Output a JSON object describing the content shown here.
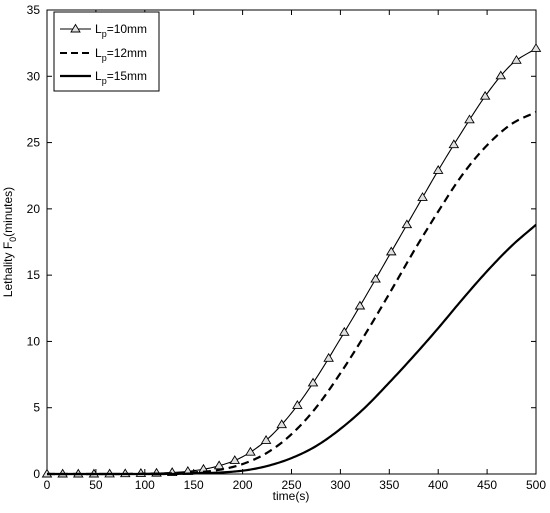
{
  "chart_data": {
    "type": "line",
    "xlabel": "time(s)",
    "ylabel": "Lethality F",
    "ylabel_sub": "0",
    "ylabel_suffix": "(minutes)",
    "xlim": [
      0,
      500
    ],
    "ylim": [
      0,
      35
    ],
    "xticks": [
      0,
      50,
      100,
      150,
      200,
      250,
      300,
      350,
      400,
      450,
      500
    ],
    "yticks": [
      0,
      5,
      10,
      15,
      20,
      25,
      30,
      35
    ],
    "grid": false,
    "legend_position": "top-left",
    "series": [
      {
        "name_main": "L",
        "name_sub": "p",
        "name_suffix": "=10mm",
        "style": "solid-triangle",
        "x": [
          0,
          50,
          100,
          125,
          150,
          175,
          200,
          225,
          250,
          275,
          300,
          325,
          350,
          375,
          400,
          425,
          450,
          475,
          500
        ],
        "values": [
          0.0,
          0.0,
          0.05,
          0.1,
          0.25,
          0.6,
          1.3,
          2.6,
          4.6,
          7.2,
          10.2,
          13.3,
          16.5,
          19.7,
          22.9,
          25.9,
          28.7,
          30.9,
          32.1
        ]
      },
      {
        "name_main": "L",
        "name_sub": "p",
        "name_suffix": "=12mm",
        "style": "dashed",
        "x": [
          0,
          50,
          100,
          150,
          175,
          200,
          225,
          250,
          275,
          300,
          325,
          350,
          375,
          400,
          425,
          450,
          475,
          500
        ],
        "values": [
          0.0,
          0.0,
          0.02,
          0.12,
          0.3,
          0.75,
          1.6,
          3.0,
          5.0,
          7.6,
          10.5,
          13.6,
          16.8,
          19.8,
          22.6,
          24.8,
          26.4,
          27.3
        ]
      },
      {
        "name_main": "L",
        "name_sub": "p",
        "name_suffix": "=15mm",
        "style": "solid-thick",
        "x": [
          0,
          100,
          150,
          200,
          225,
          250,
          275,
          300,
          325,
          350,
          375,
          400,
          425,
          450,
          475,
          500
        ],
        "values": [
          0.0,
          0.0,
          0.04,
          0.25,
          0.6,
          1.2,
          2.1,
          3.4,
          5.0,
          6.9,
          8.9,
          11.0,
          13.2,
          15.3,
          17.2,
          18.8
        ]
      }
    ],
    "triangle_markers_x": [
      0,
      16,
      32,
      48,
      64,
      80,
      96,
      112,
      128,
      144,
      160,
      176,
      192,
      208,
      224,
      240,
      256,
      272,
      288,
      304,
      320,
      336,
      352,
      368,
      384,
      400,
      416,
      432,
      448,
      464,
      480,
      500
    ]
  }
}
